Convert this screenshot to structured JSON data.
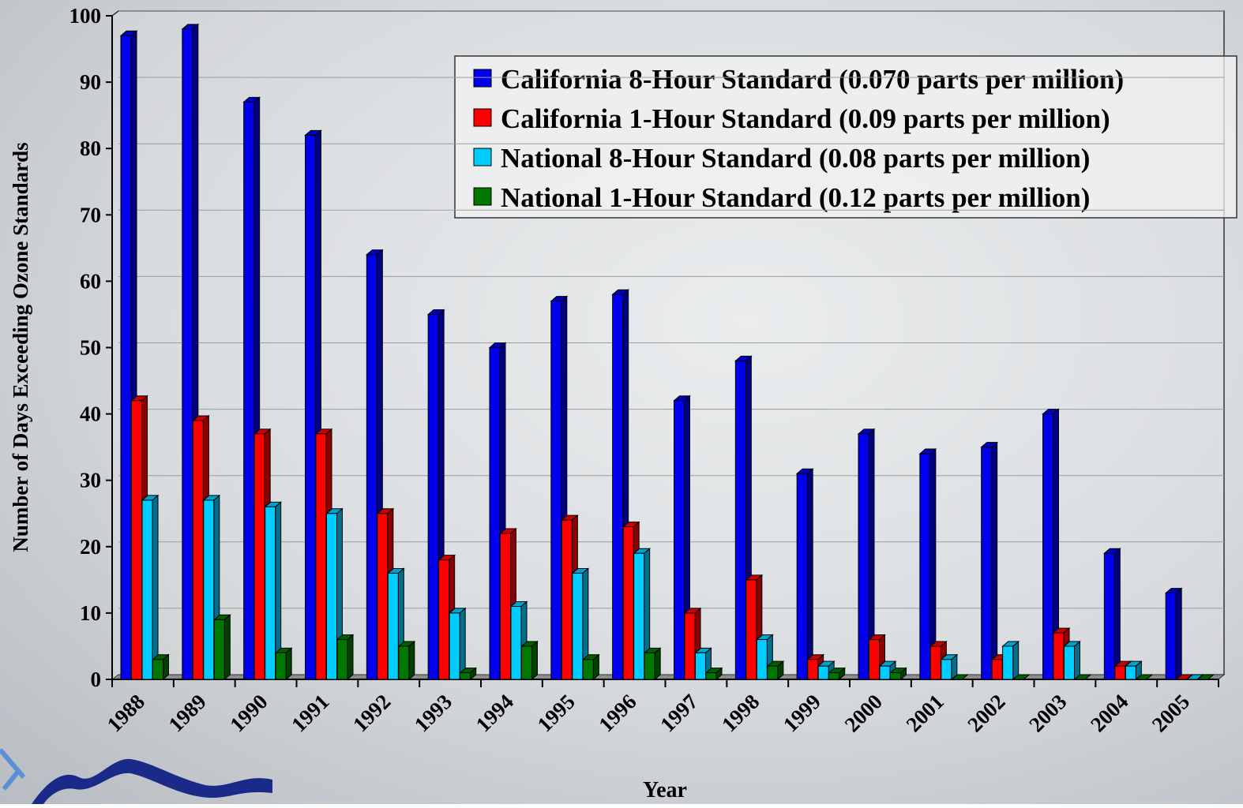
{
  "chart_data": {
    "type": "bar",
    "y_label": "Number of Days Exceeding Ozone Standards",
    "x_label": "Year",
    "categories": [
      "1988",
      "1989",
      "1990",
      "1991",
      "1992",
      "1993",
      "1994",
      "1995",
      "1996",
      "1997",
      "1998",
      "1999",
      "2000",
      "2001",
      "2002",
      "2003",
      "2004",
      "2005"
    ],
    "series": [
      {
        "name": "California 8-Hour Standard (0.070 parts per million)",
        "color": "#0000ee",
        "values": [
          97,
          98,
          87,
          82,
          64,
          55,
          50,
          57,
          58,
          42,
          48,
          31,
          37,
          34,
          35,
          40,
          19,
          13
        ]
      },
      {
        "name": "California 1-Hour Standard (0.09 parts per million)",
        "color": "#ff0000",
        "values": [
          42,
          39,
          37,
          37,
          25,
          18,
          22,
          24,
          23,
          10,
          15,
          3,
          6,
          5,
          3,
          7,
          2,
          0
        ]
      },
      {
        "name": "National 8-Hour Standard (0.08 parts per million)",
        "color": "#00ccff",
        "values": [
          27,
          27,
          26,
          25,
          16,
          10,
          11,
          16,
          19,
          4,
          6,
          2,
          2,
          3,
          5,
          5,
          2,
          0
        ]
      },
      {
        "name": "National 1-Hour Standard (0.12 parts per million)",
        "color": "#007700",
        "values": [
          3,
          9,
          4,
          6,
          5,
          1,
          5,
          3,
          4,
          1,
          2,
          1,
          1,
          0,
          0,
          0,
          0,
          0
        ]
      }
    ],
    "ylim": [
      0,
      100
    ],
    "yticks": [
      0,
      10,
      20,
      30,
      40,
      50,
      60,
      70,
      80,
      90,
      100
    ],
    "grid": true
  }
}
